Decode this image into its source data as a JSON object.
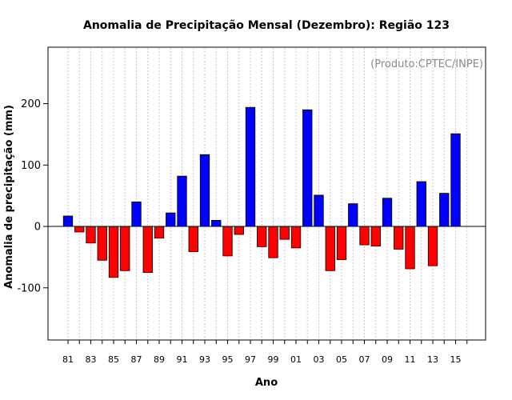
{
  "chart_data": {
    "type": "bar",
    "title": "Anomalia de Precipitação Mensal (Dezembro): Região 123",
    "credit": "(Produto:CPTEC/INPE)",
    "xlabel": "Ano",
    "ylabel": "Anomalia de precipitação (mm)",
    "ylim": [
      -185,
      292
    ],
    "yticks": [
      -100,
      0,
      100,
      200
    ],
    "categories": [
      "81",
      "82",
      "83",
      "84",
      "85",
      "86",
      "87",
      "88",
      "89",
      "90",
      "91",
      "92",
      "93",
      "94",
      "95",
      "96",
      "97",
      "98",
      "99",
      "00",
      "01",
      "02",
      "03",
      "04",
      "05",
      "06",
      "07",
      "08",
      "09",
      "10",
      "11",
      "12",
      "13",
      "14",
      "15"
    ],
    "tick_labels": [
      "81",
      "83",
      "85",
      "87",
      "89",
      "91",
      "93",
      "95",
      "97",
      "99",
      "01",
      "03",
      "05",
      "07",
      "09",
      "11",
      "13",
      "15"
    ],
    "values": [
      17,
      -9,
      -27,
      -55,
      -83,
      -72,
      40,
      -75,
      -19,
      22,
      82,
      -41,
      117,
      10,
      -48,
      -13,
      194,
      -33,
      -51,
      -21,
      -35,
      190,
      51,
      -72,
      -54,
      37,
      -30,
      -32,
      46,
      -37,
      -69,
      73,
      -64,
      54,
      151
    ],
    "colors": {
      "positive": "#0000ff",
      "negative": "#ff0000"
    },
    "grid": true
  }
}
